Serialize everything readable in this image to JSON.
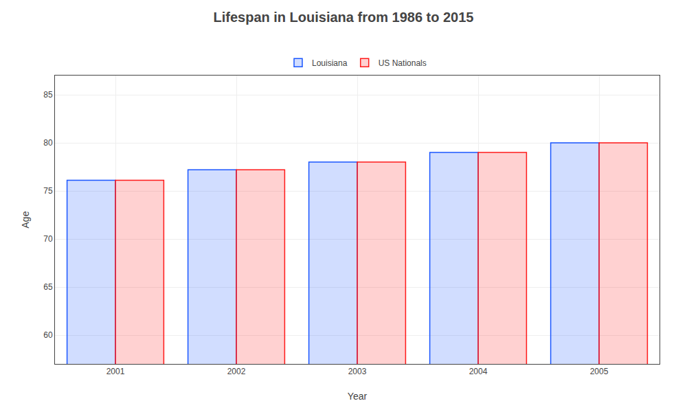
{
  "chart_data": {
    "type": "bar",
    "title": "Lifespan in Louisiana from 1986 to 2015",
    "xlabel": "Year",
    "ylabel": "Age",
    "categories": [
      "2001",
      "2002",
      "2003",
      "2004",
      "2005"
    ],
    "series": [
      {
        "name": "Louisiana",
        "color": "#1a56ff",
        "values": [
          76.1,
          77.2,
          78.0,
          79.0,
          80.0
        ]
      },
      {
        "name": "US Nationals",
        "color": "#ff1a1a",
        "values": [
          76.1,
          77.2,
          78.0,
          79.0,
          80.0
        ]
      }
    ],
    "ylim": [
      57,
      87
    ],
    "yticks": [
      60,
      65,
      70,
      75,
      80,
      85
    ],
    "grid": true,
    "legend": "upper center"
  }
}
